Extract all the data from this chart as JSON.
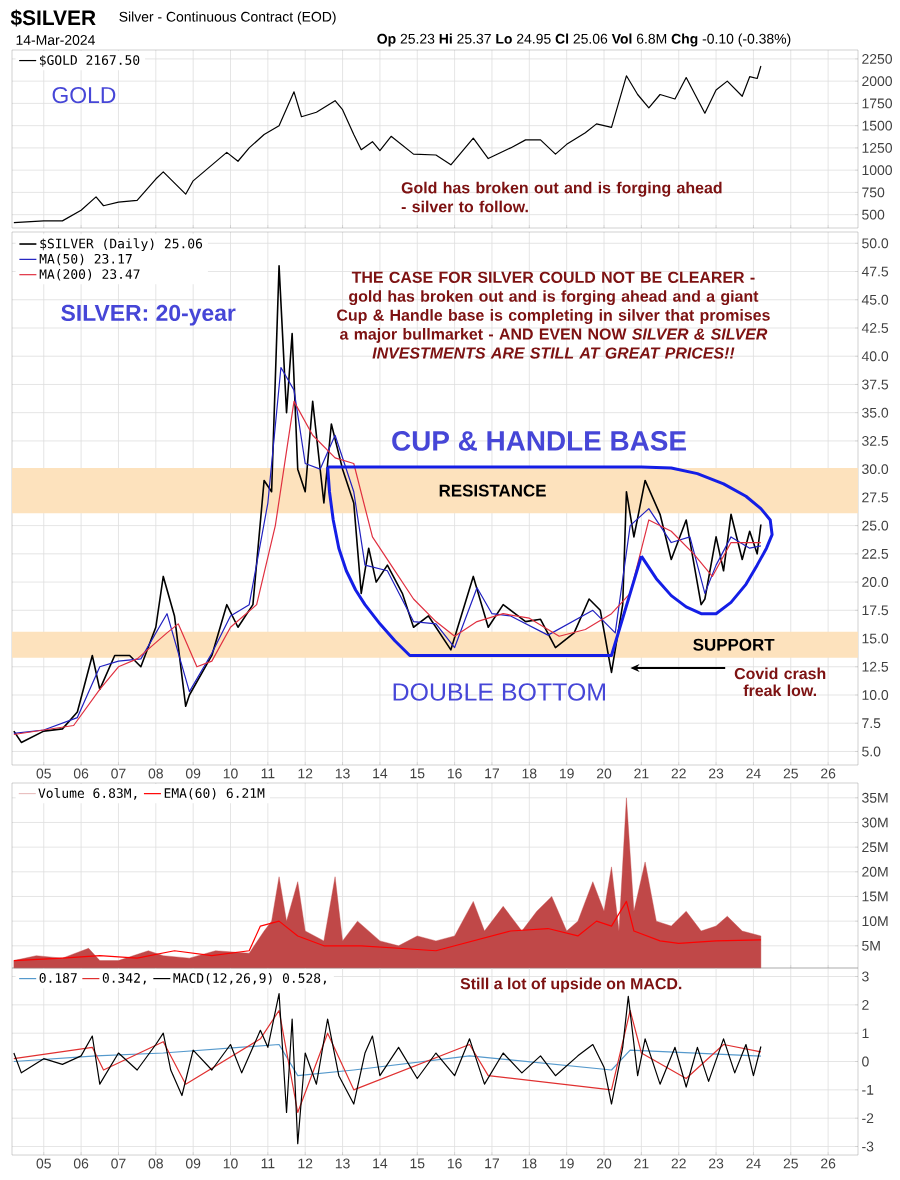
{
  "chart_data": [
    {
      "type": "line",
      "title": "$SILVER",
      "subtitle": "Silver - Continuous Contract (EOD)",
      "annotations": [
        "14-Mar-2024",
        "**Op** 25.23 **Hi** 25.37 **Lo** 24.95 **Cl** 25.06 **Vol** 6.8M **Chg** -0.10 (-0.38%)",
        "GOLD",
        "Gold has broken out and is forging ahead - silver to follow."
      ],
      "xlim": [
        2004.15,
        2026.8
      ],
      "ylim": [
        350,
        2350
      ],
      "yticks": [
        500,
        750,
        1000,
        1250,
        1500,
        1750,
        2000,
        2250
      ],
      "xticks": [
        2005,
        2006,
        2007,
        2008,
        2009,
        2010,
        2011,
        2012,
        2013,
        2014,
        2015,
        2016,
        2017,
        2018,
        2019,
        2020,
        2021,
        2022,
        2023,
        2024,
        2025,
        2026
      ],
      "tick_labels": "y",
      "grid": true,
      "legend": "top left",
      "series": [
        {
          "name": "$GOLD 2167.50",
          "color": "#000000",
          "x": [
            2004.2,
            2005.0,
            2005.5,
            2006.0,
            2006.4,
            2006.6,
            2007.0,
            2007.5,
            2008.0,
            2008.2,
            2008.8,
            2009.0,
            2009.9,
            2010.2,
            2010.5,
            2010.9,
            2011.3,
            2011.7,
            2011.9,
            2012.3,
            2012.8,
            2013.0,
            2013.3,
            2013.5,
            2013.8,
            2014.0,
            2014.3,
            2014.9,
            2015.5,
            2015.9,
            2016.5,
            2016.9,
            2017.5,
            2017.9,
            2018.3,
            2018.7,
            2019.0,
            2019.5,
            2019.8,
            2020.2,
            2020.6,
            2020.9,
            2021.2,
            2021.5,
            2021.9,
            2022.2,
            2022.7,
            2023.0,
            2023.3,
            2023.7,
            2023.9,
            2024.1,
            2024.2
          ],
          "values": [
            410,
            430,
            430,
            550,
            700,
            600,
            640,
            660,
            900,
            980,
            730,
            880,
            1200,
            1100,
            1250,
            1400,
            1500,
            1880,
            1600,
            1650,
            1780,
            1680,
            1400,
            1230,
            1320,
            1220,
            1380,
            1180,
            1170,
            1060,
            1360,
            1130,
            1250,
            1340,
            1340,
            1180,
            1290,
            1420,
            1520,
            1480,
            2060,
            1850,
            1700,
            1850,
            1800,
            2040,
            1640,
            1900,
            2000,
            1830,
            2050,
            2030,
            2170
          ]
        }
      ]
    },
    {
      "type": "line",
      "annotations": [
        "SILVER: 20-year",
        "THE CASE FOR SILVER COULD NOT BE CLEARER - gold has broken out and is forging ahead and a giant Cup & Handle base is completing in silver that promises a major bullmarket - AND EVEN NOW *SILVER & SILVER INVESTMENTS ARE STILL AT GREAT PRICES!!*",
        "CUP & HANDLE BASE",
        "DOUBLE BOTTOM",
        "Covid crash freak low."
      ],
      "xlim": [
        2004.15,
        2026.8
      ],
      "ylim": [
        3.8,
        51
      ],
      "yticks": [
        {
          "value": 5,
          "label": "5.0"
        },
        7.5,
        {
          "value": 10,
          "label": "10.0"
        },
        12.5,
        {
          "value": 15,
          "label": "15.0"
        },
        17.5,
        {
          "value": 20,
          "label": "20.0"
        },
        22.5,
        {
          "value": 25,
          "label": "25.0"
        },
        27.5,
        {
          "value": 30,
          "label": "30.0"
        },
        32.5,
        {
          "value": 35,
          "label": "35.0"
        },
        37.5,
        {
          "value": 40,
          "label": "40.0"
        },
        42.5,
        {
          "value": 45,
          "label": "45.0"
        },
        47.5,
        {
          "value": 50,
          "label": "50.0"
        }
      ],
      "xticks": [
        {
          "value": 2005,
          "label": "05"
        },
        {
          "value": 2006,
          "label": "06"
        },
        {
          "value": 2007,
          "label": "07"
        },
        {
          "value": 2008,
          "label": "08"
        },
        {
          "value": 2009,
          "label": "09"
        },
        {
          "value": 2010,
          "label": "10"
        },
        {
          "value": 2011,
          "label": "11"
        },
        {
          "value": 2012,
          "label": "12"
        },
        {
          "value": 2013,
          "label": "13"
        },
        {
          "value": 2014,
          "label": "14"
        },
        {
          "value": 2015,
          "label": "15"
        },
        {
          "value": 2016,
          "label": "16"
        },
        {
          "value": 2017,
          "label": "17"
        },
        {
          "value": 2018,
          "label": "18"
        },
        {
          "value": 2019,
          "label": "19"
        },
        {
          "value": 2020,
          "label": "20"
        },
        {
          "value": 2021,
          "label": "21"
        },
        {
          "value": 2022,
          "label": "22"
        },
        {
          "value": 2023,
          "label": "23"
        },
        {
          "value": 2024,
          "label": "24"
        },
        {
          "value": 2025,
          "label": "25"
        },
        {
          "value": 2026,
          "label": "26"
        }
      ],
      "grid": true,
      "legend": "top left",
      "bands": [
        {
          "axis": "y",
          "from": 26.1,
          "to": 30.1,
          "label": "RESISTANCE",
          "color": "#fde2bd"
        },
        {
          "axis": "y",
          "from": 13.3,
          "to": 15.6,
          "label": "SUPPORT",
          "color": "#fde2bd"
        }
      ],
      "series": [
        {
          "name": "$SILVER (Daily) 25.06",
          "color": "#000000",
          "x": [
            2004.2,
            2004.4,
            2005.0,
            2005.5,
            2005.9,
            2006.3,
            2006.5,
            2006.9,
            2007.3,
            2007.6,
            2008.0,
            2008.2,
            2008.5,
            2008.8,
            2008.9,
            2009.5,
            2009.9,
            2010.2,
            2010.6,
            2010.9,
            2011.1,
            2011.3,
            2011.5,
            2011.65,
            2011.8,
            2012.0,
            2012.2,
            2012.5,
            2012.7,
            2013.0,
            2013.3,
            2013.5,
            2013.7,
            2013.9,
            2014.2,
            2014.6,
            2014.9,
            2015.3,
            2015.9,
            2016.5,
            2016.9,
            2017.3,
            2017.9,
            2018.3,
            2018.7,
            2019.2,
            2019.6,
            2019.9,
            2020.2,
            2020.5,
            2020.6,
            2020.8,
            2021.1,
            2021.5,
            2021.8,
            2022.2,
            2022.6,
            2022.7,
            2023.0,
            2023.2,
            2023.4,
            2023.7,
            2023.9,
            2024.1,
            2024.2
          ],
          "values": [
            6.8,
            5.8,
            6.8,
            7.0,
            8.5,
            13.5,
            10.5,
            13.5,
            13.5,
            12.5,
            16,
            20.5,
            17,
            9,
            10,
            13.5,
            18,
            16,
            18,
            29,
            28,
            48,
            35,
            42,
            30,
            28,
            36,
            27,
            34,
            30,
            27,
            19,
            23,
            20,
            21.5,
            19,
            16,
            17,
            14,
            20.5,
            16,
            18,
            16.5,
            16.7,
            14.2,
            15.5,
            18.5,
            17.5,
            12,
            18,
            28,
            24,
            29,
            26,
            22,
            25.5,
            18,
            18.5,
            24,
            21,
            26,
            22,
            24.5,
            22.5,
            25.1
          ]
        },
        {
          "name": "MA(50) 23.17",
          "color": "#2020c0",
          "x": [
            2004.2,
            2005.0,
            2005.9,
            2006.5,
            2007.0,
            2007.6,
            2008.3,
            2008.9,
            2009.5,
            2010.0,
            2010.5,
            2011.0,
            2011.35,
            2011.7,
            2012.0,
            2012.4,
            2012.8,
            2013.3,
            2013.6,
            2014.2,
            2014.9,
            2015.5,
            2016.0,
            2016.6,
            2017.0,
            2017.5,
            2018.5,
            2019.7,
            2020.3,
            2020.7,
            2021.2,
            2021.8,
            2022.3,
            2022.7,
            2023.0,
            2023.4,
            2023.9,
            2024.2
          ],
          "values": [
            6.6,
            6.9,
            8.0,
            12.5,
            13.0,
            13.2,
            17.2,
            10.3,
            13.7,
            17.0,
            18.0,
            27.0,
            39,
            37,
            30.5,
            30,
            33,
            28,
            21.5,
            21.0,
            16.5,
            16.3,
            14.2,
            19.5,
            17.2,
            17.0,
            15.3,
            17.5,
            15.5,
            25,
            26.5,
            23.5,
            24,
            19,
            21.5,
            24.0,
            23.0,
            23.2
          ]
        },
        {
          "name": "MA(200) 23.47",
          "color": "#e03040",
          "x": [
            2004.2,
            2005.0,
            2005.8,
            2006.5,
            2007.0,
            2007.5,
            2008.3,
            2008.6,
            2009.1,
            2009.5,
            2010.0,
            2010.7,
            2011.2,
            2011.7,
            2012.2,
            2012.8,
            2013.3,
            2013.8,
            2014.3,
            2014.9,
            2015.5,
            2016.0,
            2016.6,
            2017.3,
            2018.0,
            2018.8,
            2019.5,
            2020.2,
            2020.7,
            2021.2,
            2021.8,
            2022.4,
            2022.9,
            2023.4,
            2024.2
          ],
          "values": [
            6.5,
            6.9,
            7.3,
            10.5,
            12.5,
            13.2,
            15.5,
            16.3,
            12.5,
            13.0,
            16.0,
            18.0,
            25,
            36,
            33,
            31,
            30.5,
            24,
            21.5,
            18.5,
            16.5,
            15.2,
            16.5,
            17.2,
            16.8,
            15.2,
            15.8,
            17.2,
            19,
            25.5,
            24.5,
            22.5,
            20.5,
            23.5,
            23.5
          ]
        },
        {
          "color": "#141ee6",
          "x": [
            2012.6,
            2012.65,
            2012.75,
            2012.9,
            2013.1,
            2013.35,
            2013.6,
            2014.0,
            2014.4,
            2014.8,
            2020.2,
            2021.0
          ],
          "values": [
            30.2,
            28,
            25.5,
            23,
            21,
            19.3,
            18,
            16.3,
            14.8,
            13.5,
            13.5,
            22.3
          ]
        },
        {
          "color": "#141ee6",
          "x": [
            2021.0,
            2021.4,
            2021.8,
            2022.2,
            2022.6,
            2023.0,
            2023.4,
            2023.8,
            2024.1,
            2024.35,
            2024.5,
            2024.45,
            2024.2,
            2023.8,
            2023.2,
            2022.5,
            2021.8,
            2021.0,
            2012.6
          ],
          "values": [
            22.3,
            20.3,
            18.8,
            17.8,
            17.2,
            17.2,
            18.2,
            19.8,
            21.5,
            23,
            24.2,
            25.5,
            26.5,
            27.6,
            28.7,
            29.6,
            30.1,
            30.2,
            30.2
          ]
        }
      ]
    },
    {
      "type": "area",
      "xlim": [
        2004.15,
        2026.8
      ],
      "ylim": [
        0.5,
        38
      ],
      "yticks": [
        {
          "value": 5,
          "label": "5M"
        },
        {
          "value": 10,
          "label": "10M"
        },
        {
          "value": 15,
          "label": "15M"
        },
        {
          "value": 20,
          "label": "20M"
        },
        {
          "value": 25,
          "label": "25M"
        },
        {
          "value": 30,
          "label": "30M"
        },
        {
          "value": 35,
          "label": "35M"
        }
      ],
      "xticks": [
        2005,
        2006,
        2007,
        2008,
        2009,
        2010,
        2011,
        2012,
        2013,
        2014,
        2015,
        2016,
        2017,
        2018,
        2019,
        2020,
        2021,
        2022,
        2023,
        2024,
        2025,
        2026
      ],
      "tick_labels": "y",
      "grid": true,
      "legend": "top left",
      "series": [
        {
          "name": "Volume 6.83M,",
          "color": "#c04848",
          "x": [
            2004.2,
            2004.8,
            2005.5,
            2006.2,
            2006.5,
            2007.0,
            2007.8,
            2008.2,
            2008.9,
            2009.6,
            2010.5,
            2010.9,
            2011.1,
            2011.3,
            2011.5,
            2011.8,
            2012.0,
            2012.5,
            2012.8,
            2013.0,
            2013.4,
            2014.0,
            2014.5,
            2015.0,
            2015.5,
            2016.0,
            2016.5,
            2016.8,
            2017.3,
            2017.8,
            2018.2,
            2018.6,
            2019.0,
            2019.3,
            2019.7,
            2020.0,
            2020.2,
            2020.4,
            2020.6,
            2020.8,
            2021.1,
            2021.4,
            2021.8,
            2022.2,
            2022.6,
            2023.0,
            2023.3,
            2023.7,
            2024.2
          ],
          "values": [
            2,
            3,
            2.5,
            4.5,
            2,
            2,
            4,
            3,
            2.5,
            4,
            3.5,
            8,
            10,
            19,
            10,
            18,
            8,
            6,
            19,
            6,
            10,
            6,
            5,
            7,
            6,
            7,
            14,
            8,
            13,
            8,
            12,
            15,
            8,
            10,
            18,
            12,
            21,
            8,
            35,
            12,
            22,
            10,
            9,
            12,
            8,
            9,
            11,
            8,
            7
          ]
        },
        {
          "name": "EMA(60) 6.21M",
          "type": "line",
          "color": "#ff0000",
          "x": [
            2004.2,
            2005.5,
            2006.5,
            2007.5,
            2008.5,
            2009.5,
            2010.5,
            2010.8,
            2011.3,
            2011.8,
            2012.5,
            2013.5,
            2014.5,
            2015.5,
            2016.5,
            2017.5,
            2018.5,
            2019.3,
            2019.8,
            2020.2,
            2020.6,
            2020.8,
            2021.5,
            2022.0,
            2023.0,
            2024.2
          ],
          "values": [
            2,
            2.5,
            3,
            2.5,
            4,
            3,
            4,
            9,
            10,
            7,
            5,
            5,
            4.5,
            4,
            6,
            8,
            8.5,
            7,
            10,
            9,
            14,
            8,
            6,
            5.5,
            6,
            6.2
          ]
        }
      ]
    },
    {
      "type": "line",
      "annotations": [
        "Still a lot of upside on MACD."
      ],
      "xlim": [
        2004.15,
        2026.8
      ],
      "ylim": [
        -3.3,
        3.3
      ],
      "yticks": [
        -3,
        -2,
        -1,
        0,
        1,
        2,
        3
      ],
      "xticks": [
        {
          "value": 2005,
          "label": "05"
        },
        {
          "value": 2006,
          "label": "06"
        },
        {
          "value": 2007,
          "label": "07"
        },
        {
          "value": 2008,
          "label": "08"
        },
        {
          "value": 2009,
          "label": "09"
        },
        {
          "value": 2010,
          "label": "10"
        },
        {
          "value": 2011,
          "label": "11"
        },
        {
          "value": 2012,
          "label": "12"
        },
        {
          "value": 2013,
          "label": "13"
        },
        {
          "value": 2014,
          "label": "14"
        },
        {
          "value": 2015,
          "label": "15"
        },
        {
          "value": 2016,
          "label": "16"
        },
        {
          "value": 2017,
          "label": "17"
        },
        {
          "value": 2018,
          "label": "18"
        },
        {
          "value": 2019,
          "label": "19"
        },
        {
          "value": 2020,
          "label": "20"
        },
        {
          "value": 2021,
          "label": "21"
        },
        {
          "value": 2022,
          "label": "22"
        },
        {
          "value": 2023,
          "label": "23"
        },
        {
          "value": 2024,
          "label": "24"
        },
        {
          "value": 2025,
          "label": "25"
        },
        {
          "value": 2026,
          "label": "26"
        }
      ],
      "grid": true,
      "legend": "top left",
      "series": [
        {
          "name": "0.187",
          "color": "#5599cc",
          "x": [
            2004.2,
            2006.4,
            2008.2,
            2011.3,
            2011.8,
            2013.3,
            2016.4,
            2020.2,
            2020.7,
            2024.2
          ],
          "values": [
            0,
            0.2,
            0.3,
            0.6,
            -0.5,
            -0.3,
            0.2,
            -0.3,
            0.4,
            0.19
          ]
        },
        {
          "name": "0.342,",
          "color": "#e03030",
          "x": [
            2004.2,
            2006.3,
            2006.6,
            2008.2,
            2008.8,
            2010.8,
            2011.3,
            2011.8,
            2012.6,
            2013.3,
            2016.4,
            2016.9,
            2020.2,
            2020.7,
            2021.0,
            2022.2,
            2023.2,
            2024.2
          ],
          "values": [
            0.1,
            0.5,
            -0.3,
            0.7,
            -0.8,
            0.8,
            1.8,
            -1.8,
            1.0,
            -1.0,
            0.6,
            -0.5,
            -1.0,
            1.8,
            0.3,
            -0.6,
            0.6,
            0.34
          ]
        },
        {
          "name": "MACD(12,26,9) 0.528,",
          "color": "#000000",
          "x": [
            2004.2,
            2004.4,
            2005.0,
            2005.5,
            2006.0,
            2006.3,
            2006.5,
            2007.0,
            2007.5,
            2008.0,
            2008.2,
            2008.4,
            2008.7,
            2009.0,
            2009.5,
            2010.0,
            2010.3,
            2010.8,
            2011.0,
            2011.3,
            2011.5,
            2011.65,
            2011.8,
            2012.0,
            2012.3,
            2012.6,
            2012.9,
            2013.3,
            2013.6,
            2013.8,
            2014.0,
            2014.5,
            2015.0,
            2015.5,
            2016.0,
            2016.4,
            2016.8,
            2017.3,
            2017.8,
            2018.3,
            2018.7,
            2019.3,
            2019.7,
            2020.0,
            2020.2,
            2020.5,
            2020.65,
            2020.9,
            2021.1,
            2021.5,
            2021.9,
            2022.2,
            2022.5,
            2022.8,
            2023.2,
            2023.5,
            2023.8,
            2024.0,
            2024.2
          ],
          "values": [
            0.3,
            -0.4,
            0.1,
            -0.1,
            0.2,
            0.9,
            -0.8,
            0.3,
            -0.3,
            0.6,
            1.0,
            -0.3,
            -1.2,
            0.4,
            -0.3,
            0.6,
            -0.4,
            1.1,
            0.5,
            2.4,
            -1.8,
            1.5,
            -2.9,
            0.3,
            -0.8,
            1.5,
            -0.5,
            -1.5,
            0.3,
            0.9,
            -0.5,
            0.5,
            -0.6,
            0.3,
            -0.5,
            0.8,
            -0.8,
            0.3,
            -0.4,
            0.2,
            -0.5,
            0.2,
            0.6,
            -0.2,
            -1.5,
            0.5,
            2.3,
            -0.5,
            0.8,
            -0.8,
            0.5,
            -0.9,
            0.5,
            -0.7,
            0.8,
            -0.4,
            0.6,
            -0.5,
            0.53
          ]
        }
      ]
    }
  ]
}
